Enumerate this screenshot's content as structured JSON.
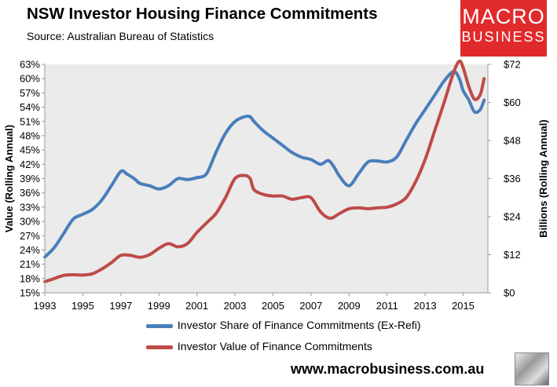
{
  "header": {
    "title": "NSW Investor Housing Finance Commitments",
    "subtitle": "Source: Australian Bureau of Statistics"
  },
  "logo": {
    "line1": "MACRO",
    "line2": "BUSINESS"
  },
  "footer": {
    "website": "www.macrobusiness.com.au"
  },
  "colors": {
    "share": "#4a7ebb",
    "value": "#be4b48",
    "plot_bg": "#ebebeb"
  },
  "chart_data": {
    "type": "line",
    "title": "NSW Investor Housing Finance Commitments",
    "subtitle": "Source: Australian Bureau of Statistics",
    "x_ticks": [
      "1993",
      "1995",
      "1997",
      "1999",
      "2001",
      "2003",
      "2005",
      "2007",
      "2009",
      "2011",
      "2013",
      "2015"
    ],
    "xlim": [
      1993,
      2016.3
    ],
    "y_left": {
      "label": "Value (Rolling Annual)",
      "lim": [
        15,
        63
      ],
      "ticks": [
        "15%",
        "18%",
        "21%",
        "24%",
        "27%",
        "30%",
        "33%",
        "36%",
        "39%",
        "42%",
        "45%",
        "48%",
        "51%",
        "54%",
        "57%",
        "60%",
        "63%"
      ]
    },
    "y_right": {
      "label": "Billions (Rolling Annual)",
      "lim": [
        0,
        72
      ],
      "ticks": [
        "$0",
        "$12",
        "$24",
        "$36",
        "$48",
        "$60",
        "$72"
      ]
    },
    "legend": {
      "placement": "bottom"
    },
    "series": [
      {
        "name": "Investor Share of Finance Commitments (Ex-Refi)",
        "axis": "left",
        "x": [
          1993.0,
          1993.5,
          1994.0,
          1994.5,
          1995.0,
          1995.5,
          1996.0,
          1996.5,
          1997.0,
          1997.3,
          1997.7,
          1998.0,
          1998.5,
          1999.0,
          1999.5,
          2000.0,
          2000.5,
          2001.0,
          2001.5,
          2002.0,
          2002.5,
          2003.0,
          2003.5,
          2003.8,
          2004.0,
          2004.5,
          2005.0,
          2005.5,
          2006.0,
          2006.5,
          2007.0,
          2007.5,
          2007.9,
          2008.2,
          2008.5,
          2009.0,
          2009.5,
          2010.0,
          2010.5,
          2011.0,
          2011.5,
          2012.0,
          2012.5,
          2013.0,
          2013.5,
          2014.0,
          2014.5,
          2014.8,
          2015.0,
          2015.3,
          2015.6,
          2015.9,
          2016.1
        ],
        "y": [
          22.5,
          24.5,
          27.5,
          30.5,
          31.5,
          32.5,
          34.5,
          37.5,
          40.5,
          40.0,
          39.0,
          38.0,
          37.5,
          36.8,
          37.5,
          39.0,
          38.8,
          39.2,
          40.0,
          44.5,
          48.5,
          51.0,
          52.0,
          52.0,
          51.0,
          49.0,
          47.5,
          46.0,
          44.5,
          43.5,
          43.0,
          42.0,
          42.8,
          41.5,
          39.5,
          37.5,
          40.0,
          42.5,
          42.7,
          42.5,
          43.5,
          47.0,
          50.5,
          53.5,
          56.5,
          59.5,
          61.5,
          60.0,
          57.5,
          55.5,
          53.0,
          53.5,
          55.5
        ]
      },
      {
        "name": "Investor Value of Finance Commitments",
        "axis": "right",
        "x": [
          1993.0,
          1993.5,
          1994.0,
          1994.5,
          1995.0,
          1995.5,
          1996.0,
          1996.5,
          1997.0,
          1997.5,
          1998.0,
          1998.5,
          1999.0,
          1999.5,
          2000.0,
          2000.5,
          2001.0,
          2001.5,
          2002.0,
          2002.5,
          2003.0,
          2003.5,
          2003.8,
          2004.0,
          2004.5,
          2005.0,
          2005.5,
          2006.0,
          2006.5,
          2007.0,
          2007.5,
          2008.0,
          2008.5,
          2009.0,
          2009.5,
          2010.0,
          2010.5,
          2011.0,
          2011.5,
          2012.0,
          2012.5,
          2013.0,
          2013.5,
          2014.0,
          2014.5,
          2014.8,
          2015.0,
          2015.3,
          2015.6,
          2015.9,
          2016.1
        ],
        "y": [
          3.5,
          4.5,
          5.5,
          5.7,
          5.6,
          6.0,
          7.5,
          9.5,
          11.8,
          11.8,
          11.2,
          12.0,
          14.0,
          15.5,
          14.5,
          15.5,
          19.0,
          22.0,
          25.0,
          30.0,
          36.0,
          37.0,
          36.0,
          32.5,
          31.0,
          30.5,
          30.5,
          29.5,
          30.0,
          30.0,
          25.5,
          23.5,
          25.0,
          26.5,
          26.8,
          26.5,
          26.8,
          27.0,
          28.0,
          30.0,
          35.0,
          42.0,
          51.0,
          60.0,
          69.5,
          73.0,
          71.0,
          65.0,
          61.0,
          62.5,
          67.5
        ]
      }
    ]
  }
}
